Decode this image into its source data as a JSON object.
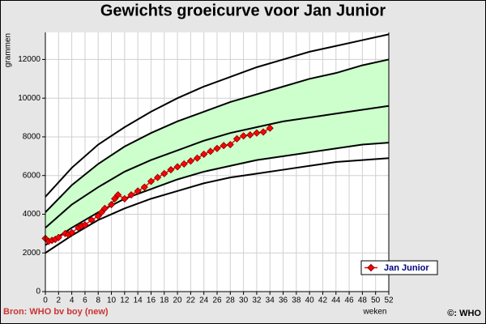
{
  "chart_data": {
    "type": "line",
    "title": "Gewichts groeicurve voor Jan Junior",
    "ylabel": "grammen",
    "xlabel": "weken",
    "source": "Bron: WHO bv boy (new)",
    "copyright": "©: WHO",
    "x": [
      0,
      4,
      8,
      12,
      16,
      20,
      24,
      28,
      32,
      36,
      40,
      44,
      48,
      52
    ],
    "series": [
      {
        "color": "#000000",
        "values": [
          2000,
          2900,
          3700,
          4300,
          4800,
          5200,
          5600,
          5900,
          6100,
          6300,
          6500,
          6700,
          6800,
          6900
        ]
      },
      {
        "color": "#000000",
        "values": [
          2400,
          3300,
          4100,
          4800,
          5300,
          5800,
          6200,
          6500,
          6800,
          7000,
          7200,
          7400,
          7600,
          7700
        ]
      },
      {
        "color": "#000000",
        "values": [
          3300,
          4500,
          5400,
          6200,
          6800,
          7300,
          7800,
          8200,
          8500,
          8800,
          9000,
          9200,
          9400,
          9600
        ]
      },
      {
        "color": "#000000",
        "values": [
          4100,
          5500,
          6600,
          7500,
          8200,
          8800,
          9300,
          9800,
          10200,
          10600,
          11000,
          11300,
          11700,
          12000
        ]
      },
      {
        "color": "#000000",
        "values": [
          4900,
          6400,
          7600,
          8500,
          9300,
          10000,
          10600,
          11100,
          11600,
          12000,
          12400,
          12700,
          13000,
          13300
        ]
      },
      {
        "name": "Jan Junior",
        "color": "#ff0000",
        "marker": "diamond",
        "x": [
          0,
          0.5,
          1,
          1.5,
          2,
          3,
          3.5,
          4,
          5,
          5.5,
          6,
          7,
          8,
          8.5,
          9,
          10,
          10.5,
          11,
          12,
          13,
          14,
          15,
          16,
          17,
          18,
          19,
          20,
          21,
          22,
          23,
          24,
          25,
          26,
          27,
          28,
          29,
          30,
          31,
          32,
          33,
          34
        ],
        "values": [
          2750,
          2600,
          2650,
          2700,
          2800,
          3000,
          2950,
          3050,
          3300,
          3400,
          3450,
          3700,
          3900,
          4100,
          4300,
          4500,
          4800,
          5000,
          4800,
          5000,
          5200,
          5400,
          5700,
          5900,
          6100,
          6300,
          6450,
          6600,
          6750,
          6900,
          7100,
          7250,
          7400,
          7550,
          7600,
          7900,
          8050,
          8100,
          8200,
          8250,
          8450
        ]
      }
    ],
    "fill_between": [
      1,
      3
    ],
    "fill_color": "#ccffcc",
    "xlim": [
      0,
      52
    ],
    "xticks": [
      0,
      2,
      4,
      6,
      8,
      10,
      12,
      14,
      16,
      18,
      20,
      22,
      24,
      26,
      28,
      30,
      32,
      34,
      36,
      38,
      40,
      42,
      44,
      46,
      48,
      50,
      52
    ],
    "ylim": [
      0,
      13400
    ],
    "yticks": [
      0,
      2000,
      4000,
      6000,
      8000,
      10000,
      12000
    ],
    "grid": true,
    "legend": "lower-right"
  }
}
